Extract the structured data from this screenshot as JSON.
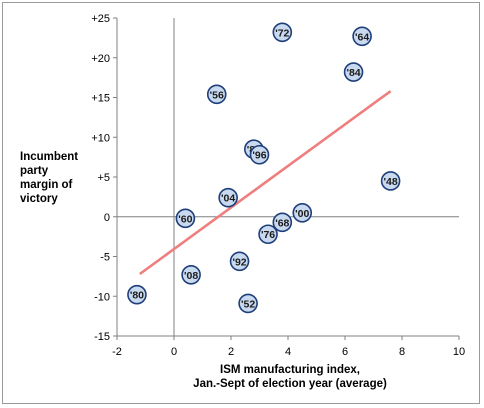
{
  "chart_data": {
    "type": "scatter",
    "xlabel": "ISM manufacturing index,\nJan.-Sept of election year (average)",
    "ylabel": "Incumbent\nparty\nmargin of\nvictory",
    "xlim": [
      -2,
      10
    ],
    "ylim": [
      -15,
      25
    ],
    "x_ticks": [
      -2,
      0,
      2,
      4,
      6,
      8,
      10
    ],
    "y_ticks": [
      25,
      20,
      15,
      10,
      5,
      0,
      -5,
      -10,
      -15
    ],
    "x_tick_labels": [
      "-2",
      "0",
      "2",
      "4",
      "6",
      "8",
      "10"
    ],
    "y_tick_labels": [
      "+25",
      "+20",
      "+15",
      "+10",
      "+5",
      "0",
      "-5",
      "-10",
      "-15"
    ],
    "grid": false,
    "points": [
      {
        "label": "'72",
        "x": 3.8,
        "y": 23.2
      },
      {
        "label": "'64",
        "x": 6.6,
        "y": 22.7
      },
      {
        "label": "'84",
        "x": 6.3,
        "y": 18.2
      },
      {
        "label": "'56",
        "x": 1.5,
        "y": 15.4
      },
      {
        "label": "'88",
        "x": 2.8,
        "y": 8.5
      },
      {
        "label": "'96",
        "x": 3.0,
        "y": 7.8
      },
      {
        "label": "'48",
        "x": 7.6,
        "y": 4.5
      },
      {
        "label": "'04",
        "x": 1.9,
        "y": 2.4
      },
      {
        "label": "'00",
        "x": 4.5,
        "y": 0.5
      },
      {
        "label": "'60",
        "x": 0.4,
        "y": -0.2
      },
      {
        "label": "'68",
        "x": 3.8,
        "y": -0.7
      },
      {
        "label": "'76",
        "x": 3.3,
        "y": -2.2
      },
      {
        "label": "'92",
        "x": 2.3,
        "y": -5.6
      },
      {
        "label": "'08",
        "x": 0.6,
        "y": -7.3
      },
      {
        "label": "'80",
        "x": -1.3,
        "y": -9.8
      },
      {
        "label": "'52",
        "x": 2.6,
        "y": -10.9
      }
    ],
    "trendline": {
      "x": [
        -1.2,
        7.6
      ],
      "y": [
        -7.2,
        15.8
      ]
    },
    "colors": {
      "marker_fill": "#c9d9ef",
      "marker_stroke": "#1f3f7a",
      "trendline": "#ef7f7f",
      "axis": "#808080"
    }
  }
}
